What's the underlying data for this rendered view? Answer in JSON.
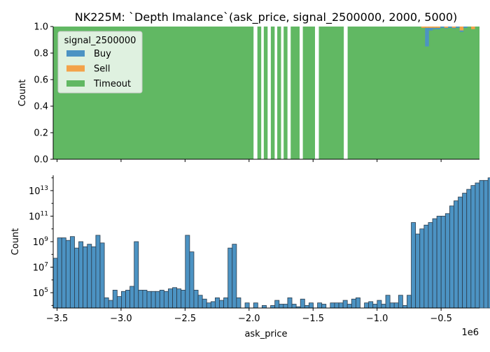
{
  "title": "NK225M: `Depth Imalance`(ask_price, signal_2500000, 2000, 5000)",
  "x_label": "ask_price",
  "x_offset_label": "1e6",
  "colors": {
    "buy": "#4c93c3",
    "sell": "#f3a24a",
    "timeout": "#61b863",
    "hist": "#4c93c3",
    "edge": "#2b3b4b"
  },
  "chart_data": [
    {
      "type": "bar",
      "subtype": "stacked-proportion-histogram",
      "xlim": [
        -3.53,
        -0.2
      ],
      "ylim": [
        0,
        1
      ],
      "ylabel": "Count",
      "x_scale_note": "1e6",
      "x_ticks": [
        {
          "v": -3.5,
          "label": "−3.5"
        },
        {
          "v": -3.0,
          "label": "−3.0"
        },
        {
          "v": -2.5,
          "label": "−2.5"
        },
        {
          "v": -2.0,
          "label": "−2.0"
        },
        {
          "v": -1.5,
          "label": "−1.5"
        },
        {
          "v": -1.0,
          "label": "−1.0"
        },
        {
          "v": -0.5,
          "label": "−0.5"
        }
      ],
      "y_ticks": [
        {
          "v": 0,
          "label": "0.0"
        },
        {
          "v": 0.2,
          "label": "0.2"
        },
        {
          "v": 0.4,
          "label": "0.4"
        },
        {
          "v": 0.6,
          "label": "0.6"
        },
        {
          "v": 0.8,
          "label": "0.8"
        },
        {
          "v": 1.0,
          "label": "1.0"
        }
      ],
      "legend": {
        "title": "signal_2500000",
        "position": "upper-left",
        "entries": [
          "Buy",
          "Sell",
          "Timeout"
        ]
      },
      "timeout_ranges": [
        [
          -3.53,
          -1.965
        ],
        [
          -1.935,
          -1.905
        ],
        [
          -1.885,
          -1.855
        ],
        [
          -1.83,
          -1.8
        ],
        [
          -1.78,
          -1.75
        ],
        [
          -1.73,
          -1.7
        ],
        [
          -1.675,
          -1.605
        ],
        [
          -1.58,
          -1.485
        ],
        [
          -1.455,
          -1.26
        ],
        [
          -1.23,
          -0.2
        ]
      ],
      "buy_sell_detail": [
        {
          "x0": -0.655,
          "x1": -0.625,
          "buy": 0.0,
          "sell": 0.01
        },
        {
          "x0": -0.625,
          "x1": -0.595,
          "buy": 0.14,
          "sell": 0.01
        },
        {
          "x0": -0.595,
          "x1": -0.565,
          "buy": 0.02,
          "sell": 0.01
        },
        {
          "x0": -0.565,
          "x1": -0.535,
          "buy": 0.01,
          "sell": 0.01
        },
        {
          "x0": -0.535,
          "x1": -0.505,
          "buy": 0.01,
          "sell": 0.01
        },
        {
          "x0": -0.505,
          "x1": -0.475,
          "buy": 0.01,
          "sell": 0.0
        },
        {
          "x0": -0.475,
          "x1": -0.445,
          "buy": 0.005,
          "sell": 0.01
        },
        {
          "x0": -0.445,
          "x1": -0.415,
          "buy": 0.01,
          "sell": 0.0
        },
        {
          "x0": -0.415,
          "x1": -0.385,
          "buy": 0.005,
          "sell": 0.01
        },
        {
          "x0": -0.385,
          "x1": -0.355,
          "buy": 0.01,
          "sell": 0.0
        },
        {
          "x0": -0.355,
          "x1": -0.325,
          "buy": 0.01,
          "sell": 0.03
        },
        {
          "x0": -0.325,
          "x1": -0.295,
          "buy": 0.01,
          "sell": 0.0
        },
        {
          "x0": -0.295,
          "x1": -0.265,
          "buy": 0.0,
          "sell": 0.0
        },
        {
          "x0": -0.265,
          "x1": -0.235,
          "buy": 0.0,
          "sell": 0.02
        }
      ]
    },
    {
      "type": "bar",
      "subtype": "histogram-log",
      "xlim": [
        -3.53,
        -0.2
      ],
      "ylim_log10": [
        3.8,
        14.2
      ],
      "ylabel": "Count",
      "xlabel": "ask_price",
      "y_ticks": [
        {
          "exp": 5,
          "base": "10",
          "sup": "5"
        },
        {
          "exp": 7,
          "base": "10",
          "sup": "7"
        },
        {
          "exp": 9,
          "base": "10",
          "sup": "9"
        },
        {
          "exp": 11,
          "base": "10",
          "sup": "11"
        },
        {
          "exp": 13,
          "base": "10",
          "sup": "13"
        }
      ],
      "bin_start": -3.53,
      "bin_width": 0.0333,
      "log10_counts": [
        7.7,
        9.3,
        9.3,
        9.1,
        9.4,
        8.5,
        9.0,
        8.6,
        8.8,
        8.6,
        9.5,
        8.9,
        4.6,
        4.4,
        5.2,
        4.7,
        5.1,
        5.2,
        5.5,
        9.0,
        5.2,
        5.2,
        5.1,
        5.1,
        5.1,
        5.2,
        5.1,
        5.3,
        5.4,
        5.3,
        5.2,
        9.5,
        8.2,
        5.2,
        4.8,
        4.5,
        4.2,
        4.3,
        4.6,
        4.4,
        4.6,
        8.5,
        8.8,
        4.6,
        0,
        4.2,
        0,
        4.2,
        0,
        4.0,
        0,
        4.0,
        4.4,
        4.1,
        4.1,
        4.6,
        4.1,
        3.9,
        4.5,
        4.0,
        4.2,
        0,
        4.2,
        4.1,
        0,
        4.2,
        4.2,
        4.2,
        4.4,
        4.1,
        4.5,
        4.6,
        0,
        4.2,
        4.3,
        4.1,
        4.4,
        4.1,
        4.8,
        4.2,
        4.2,
        4.8,
        4.0,
        4.8,
        10.5,
        9.6,
        10.0,
        10.3,
        10.5,
        10.8,
        11.0,
        11.0,
        11.2,
        11.8,
        12.2,
        12.5,
        12.8,
        13.1,
        13.4,
        13.6,
        13.8,
        13.8,
        14.0,
        14.0,
        13.8,
        13.5
      ]
    }
  ]
}
